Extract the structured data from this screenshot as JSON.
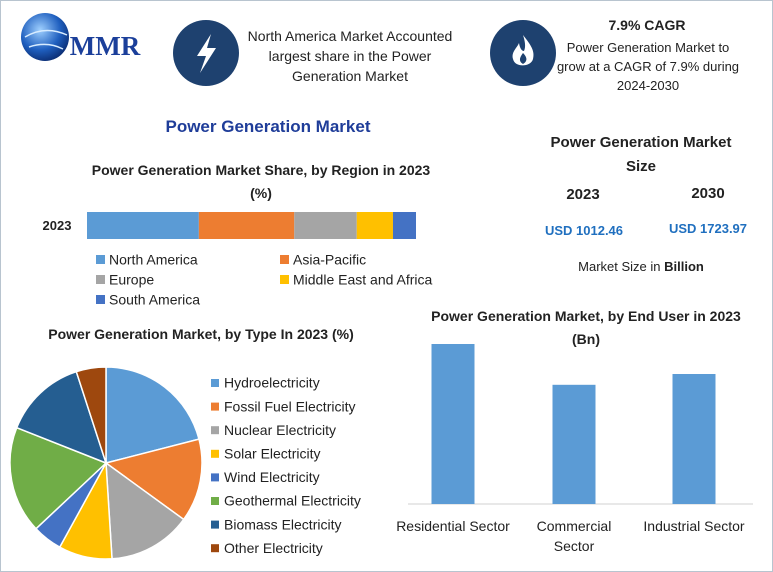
{
  "header": {
    "logo": "MMR",
    "highlight_1": "North America Market Accounted largest share in the Power Generation Market",
    "highlight_2_title": "7.9% CAGR",
    "highlight_2_text": "Power Generation Market to grow at a CAGR of 7.9% during 2024-2030",
    "title": "Power Generation Market"
  },
  "market_size": {
    "title": "Power Generation Market Size",
    "years": [
      "2023",
      "2030"
    ],
    "values": [
      "USD 1012.46",
      "USD 1723.97"
    ],
    "note": "Market Size in",
    "note_unit": "Billion"
  },
  "chart_data": [
    {
      "type": "bar",
      "orientation": "horizontal",
      "stacked": true,
      "title": "Power Generation Market Share, by Region in 2023 (%)",
      "categories": [
        "2023"
      ],
      "xlim": [
        0,
        100
      ],
      "series": [
        {
          "name": "North America",
          "color": "#5b9bd5",
          "values": [
            34
          ]
        },
        {
          "name": "Asia-Pacific",
          "color": "#ed7d31",
          "values": [
            29
          ]
        },
        {
          "name": "Europe",
          "color": "#a5a5a5",
          "values": [
            19
          ]
        },
        {
          "name": "Middle East and Africa",
          "color": "#ffc000",
          "values": [
            11
          ]
        },
        {
          "name": "South America",
          "color": "#4472c4",
          "values": [
            7
          ]
        }
      ]
    },
    {
      "type": "pie",
      "title": "Power Generation Market, by Type In 2023 (%)",
      "categories": [
        "Hydroelectricity",
        "Fossil Fuel Electricity",
        "Nuclear Electricity",
        "Solar Electricity",
        "Wind Electricity",
        "Geothermal Electricity",
        "Biomass Electricity",
        "Other Electricity"
      ],
      "values": [
        21,
        14,
        14,
        9,
        5,
        18,
        14,
        5
      ],
      "colors": [
        "#5b9bd5",
        "#ed7d31",
        "#a5a5a5",
        "#ffc000",
        "#4472c4",
        "#70ad47",
        "#255e91",
        "#9e480e"
      ]
    },
    {
      "type": "bar",
      "orientation": "vertical",
      "title": "Power Generation Market, by End User in 2023 (Bn)",
      "categories": [
        "Residential Sector",
        "Commercial Sector",
        "Industrial Sector"
      ],
      "values": [
        400,
        298,
        325
      ],
      "color": "#5b9bd5",
      "ylim": [
        0,
        400
      ]
    }
  ]
}
